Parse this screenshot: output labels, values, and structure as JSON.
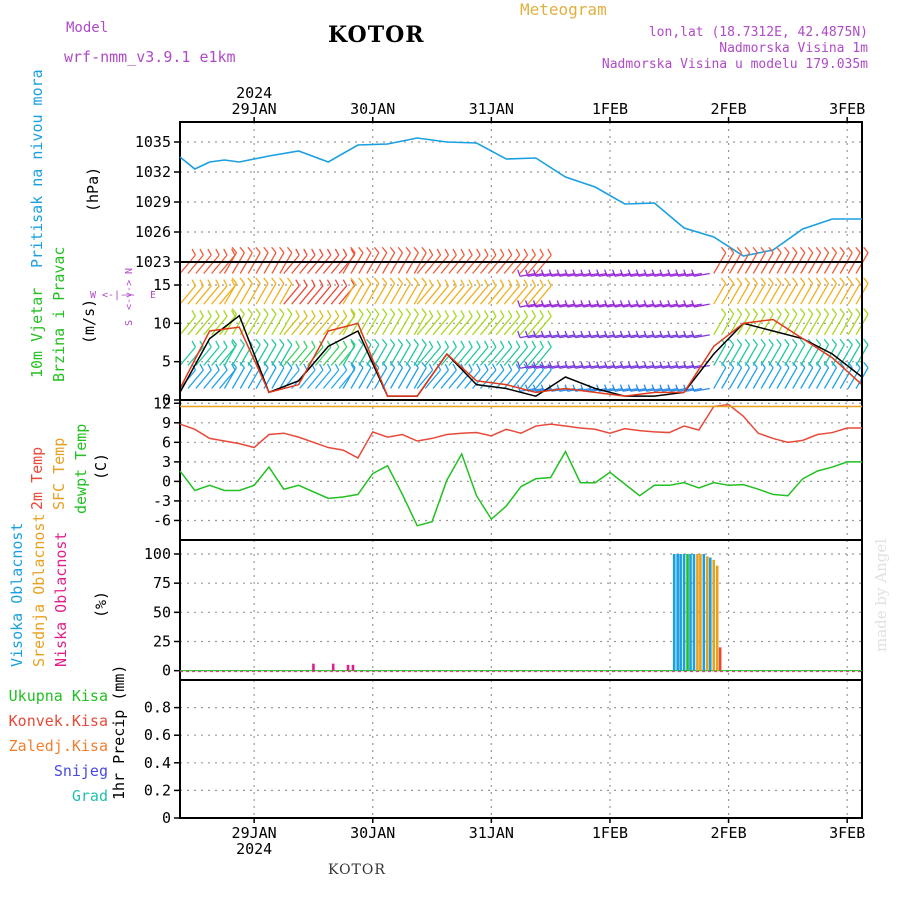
{
  "header": {
    "model_label": "Model",
    "model_name": "wrf-nmm_v3.9.1  e1km",
    "station": "KOTOR",
    "product": "Meteogram",
    "location": "lon,lat (18.7312E, 42.4875N)",
    "elevation": "Nadmorska Visina 1m",
    "model_elevation": "Nadmorska Visina u modelu 179.035m",
    "footer_station": "KOTOR",
    "credit": "made by Angel",
    "year": "2024"
  },
  "time_axis": {
    "days": [
      "29JAN",
      "30JAN",
      "31JAN",
      "1FEB",
      "2FEB",
      "3FEB"
    ],
    "start_hour_before_first_day": 3,
    "total_hours": 138,
    "colors": {
      "text": "#000000",
      "grid": "#999999"
    }
  },
  "panels": {
    "pressure": {
      "label_1": "Pritisak na nivou mora",
      "unit": "(hPa)",
      "ylim": [
        1023,
        1037
      ],
      "yticks": [
        "1023",
        "1026",
        "1029",
        "1032",
        "1035"
      ],
      "color": "#1aa0e0"
    },
    "wind": {
      "label_1": "10m Vjetar",
      "label_2": "Brzina i Pravac",
      "unit": "(m/s)",
      "ylim": [
        0,
        18
      ],
      "yticks": [
        "0",
        "5",
        "10",
        "15"
      ],
      "compass": [
        "N",
        "W",
        "E",
        "S"
      ],
      "compass_arrows": [
        "<-|->",
        "<-|->"
      ],
      "speed_color": "#000000",
      "gust_color": "#e03a1a"
    },
    "temperature": {
      "label_1": "2m Temp",
      "label_2": "SFC Temp",
      "label_3": "dewpt Temp",
      "unit": "(C)",
      "ylim": [
        -9,
        12.5
      ],
      "yticks": [
        "-6",
        "-3",
        "0",
        "3",
        "6",
        "9",
        "12"
      ],
      "colors": {
        "t2m": "#e84a3a",
        "sfc": "#e8a020",
        "dewpt": "#22c022"
      }
    },
    "clouds": {
      "label_1": "Visoka Oblacnost",
      "label_2": "Srednja Oblacnost",
      "label_3": "Niska Oblacnost",
      "unit": "(%)",
      "ylim": [
        -8,
        112
      ],
      "yticks": [
        "0",
        "25",
        "50",
        "75",
        "100"
      ],
      "colors": {
        "high": "#1aa0e0",
        "mid": "#e8a020",
        "low": "#e0208a",
        "total": "#22c022",
        "conv": "#e84a3a"
      }
    },
    "precip": {
      "legend": [
        "Ukupna Kisa",
        "Konvek.Kisa",
        "Zaledj.Kisa",
        "Snijeg",
        "Grad"
      ],
      "legend_colors": [
        "#22c022",
        "#e84a3a",
        "#f08030",
        "#4a4ae0",
        "#20c0b0"
      ],
      "unit": "1hr Precip (mm)",
      "ylim": [
        0,
        1
      ],
      "yticks": [
        "0",
        "0.2",
        "0.4",
        "0.6",
        "0.8"
      ]
    }
  },
  "chart_data": [
    {
      "type": "line",
      "title": "",
      "ylabel": "Pritisak na nivou mora (hPa)",
      "ylim": [
        1023,
        1037
      ],
      "x_hours": [
        0,
        3,
        6,
        9,
        12,
        18,
        24,
        30,
        36,
        42,
        48,
        54,
        60,
        66,
        72,
        78,
        84,
        90,
        96,
        102,
        108,
        114,
        120,
        126,
        132,
        138
      ],
      "series": [
        {
          "values": [
            1033.5,
            1032.3,
            1033.0,
            1033.2,
            1033.0,
            1033.6,
            1034.1,
            1033.0,
            1034.7,
            1034.8,
            1035.4,
            1035.0,
            1034.9,
            1033.3,
            1033.4,
            1031.5,
            1030.5,
            1028.8,
            1028.9,
            1026.4,
            1025.5,
            1023.6,
            1024.2,
            1026.3,
            1027.3,
            1027.3
          ]
        }
      ],
      "grid": true
    },
    {
      "type": "line",
      "title": "",
      "ylabel": "10m Vjetar Brzina i Pravac (m/s)",
      "ylim": [
        0,
        18
      ],
      "x_hours": [
        0,
        6,
        12,
        18,
        24,
        30,
        36,
        42,
        48,
        54,
        60,
        66,
        72,
        78,
        84,
        90,
        96,
        102,
        108,
        114,
        120,
        126,
        132,
        138
      ],
      "series": [
        {
          "name": "speed",
          "values": [
            1.0,
            8.0,
            11.0,
            1.0,
            2.5,
            7.0,
            9.0,
            0.5,
            0.5,
            6.0,
            2.0,
            1.5,
            0.5,
            3.0,
            1.5,
            0.5,
            0.5,
            1.0,
            6.0,
            10.0,
            9.0,
            8.0,
            6.0,
            3.0
          ]
        },
        {
          "name": "gust",
          "values": [
            1.5,
            9.0,
            9.5,
            1.0,
            2.0,
            9.0,
            10.0,
            0.5,
            0.5,
            6.0,
            2.5,
            2.0,
            1.0,
            1.5,
            1.0,
            0.5,
            1.0,
            1.0,
            7.0,
            10.0,
            10.5,
            8.0,
            5.5,
            2.0
          ]
        }
      ],
      "wind_barbs": {
        "rows_m_s": [
          1.5,
          4.5,
          8.5,
          12.5,
          16.5
        ],
        "regimes": [
          {
            "from_hour": 0,
            "to_hour": 9,
            "direction": "NE"
          },
          {
            "from_hour": 9,
            "to_hour": 21,
            "direction": "N"
          },
          {
            "from_hour": 21,
            "to_hour": 33,
            "direction": "NE"
          },
          {
            "from_hour": 33,
            "to_hour": 48,
            "direction": "N"
          },
          {
            "from_hour": 48,
            "to_hour": 72,
            "direction": "NE"
          },
          {
            "from_hour": 72,
            "to_hour": 108,
            "direction": "SE"
          },
          {
            "from_hour": 108,
            "to_hour": 138,
            "direction": "N"
          }
        ]
      },
      "grid": true
    },
    {
      "type": "line",
      "title": "",
      "ylabel": "2m Temp / SFC Temp / dewpt Temp (C)",
      "ylim": [
        -9,
        12.5
      ],
      "x_hours": [
        0,
        3,
        6,
        9,
        12,
        15,
        18,
        21,
        24,
        30,
        33,
        36,
        39,
        42,
        45,
        48,
        51,
        54,
        57,
        60,
        63,
        66,
        69,
        72,
        75,
        78,
        81,
        84,
        87,
        90,
        93,
        96,
        99,
        102,
        105,
        108,
        111,
        114,
        117,
        120,
        123,
        126,
        129,
        132,
        135,
        138
      ],
      "series": [
        {
          "name": "2m Temp",
          "values": [
            8.8,
            8.0,
            6.6,
            6.2,
            5.8,
            5.2,
            7.2,
            7.4,
            6.8,
            5.2,
            4.8,
            3.6,
            7.6,
            6.8,
            7.2,
            6.2,
            6.6,
            7.2,
            7.4,
            7.5,
            7.0,
            8.0,
            7.4,
            8.5,
            8.8,
            8.5,
            8.2,
            8.0,
            7.4,
            8.1,
            7.8,
            7.6,
            7.5,
            8.5,
            7.9,
            11.5,
            11.8,
            10.0,
            7.4,
            6.6,
            6.0,
            6.3,
            7.2,
            7.5,
            8.2,
            8.2
          ]
        },
        {
          "name": "SFC Temp",
          "values": [
            11.5,
            11.5,
            11.5,
            11.5,
            11.5,
            11.5,
            11.5,
            11.5,
            11.5,
            11.5,
            11.5,
            11.5,
            11.5,
            11.5,
            11.5,
            11.5,
            11.5,
            11.5,
            11.5,
            11.5,
            11.5,
            11.5,
            11.5,
            11.5,
            11.5,
            11.5,
            11.5,
            11.5,
            11.5,
            11.5,
            11.5,
            11.5,
            11.5,
            11.5,
            11.5,
            11.5,
            11.5,
            11.5,
            11.5,
            11.5,
            11.5,
            11.5,
            11.5,
            11.5,
            11.5,
            11.5
          ]
        },
        {
          "name": "dewpt Temp",
          "values": [
            1.6,
            -1.4,
            -0.6,
            -1.4,
            -1.4,
            -0.6,
            2.2,
            -1.2,
            -0.6,
            -2.6,
            -2.4,
            -2.0,
            1.2,
            2.4,
            -2.0,
            -6.8,
            -6.2,
            0.2,
            4.2,
            -2.2,
            -5.8,
            -3.8,
            -0.8,
            0.4,
            0.6,
            4.6,
            -0.2,
            -0.2,
            1.4,
            -0.4,
            -2.2,
            -0.6,
            -0.6,
            -0.2,
            -1.0,
            -0.2,
            -0.6,
            -0.5,
            -1.2,
            -2.0,
            -2.2,
            0.4,
            1.6,
            2.2,
            3.0,
            3.0
          ]
        }
      ],
      "grid": true
    },
    {
      "type": "bar",
      "title": "",
      "ylabel": "Oblacnost (%)",
      "ylim": [
        -8,
        112
      ],
      "bars": [
        {
          "hour": 27,
          "layer": "low",
          "value": 6
        },
        {
          "hour": 31,
          "layer": "low",
          "value": 6
        },
        {
          "hour": 34,
          "layer": "low",
          "value": 5
        },
        {
          "hour": 35,
          "layer": "low",
          "value": 5
        },
        {
          "hour": 100,
          "layer": "high",
          "value": 100
        },
        {
          "hour": 100.7,
          "layer": "high",
          "value": 100
        },
        {
          "hour": 101.3,
          "layer": "high",
          "value": 100
        },
        {
          "hour": 102,
          "layer": "high",
          "value": 100
        },
        {
          "hour": 102.7,
          "layer": "total",
          "value": 100
        },
        {
          "hour": 103.3,
          "layer": "high",
          "value": 100
        },
        {
          "hour": 104,
          "layer": "high",
          "value": 100
        },
        {
          "hour": 104.7,
          "layer": "mid",
          "value": 100
        },
        {
          "hour": 105.3,
          "layer": "mid",
          "value": 100
        },
        {
          "hour": 106,
          "layer": "high",
          "value": 100
        },
        {
          "hour": 106.7,
          "layer": "mid",
          "value": 98
        },
        {
          "hour": 107.3,
          "layer": "high",
          "value": 97
        },
        {
          "hour": 108,
          "layer": "mid",
          "value": 95
        },
        {
          "hour": 108.7,
          "layer": "mid",
          "value": 90
        },
        {
          "hour": 109.3,
          "layer": "conv",
          "value": 20
        }
      ],
      "grid": true
    },
    {
      "type": "bar",
      "title": "",
      "ylabel": "1hr Precip (mm)",
      "ylim": [
        0,
        1
      ],
      "series": [
        {
          "name": "Ukupna Kisa",
          "values": []
        }
      ],
      "grid": true
    }
  ]
}
